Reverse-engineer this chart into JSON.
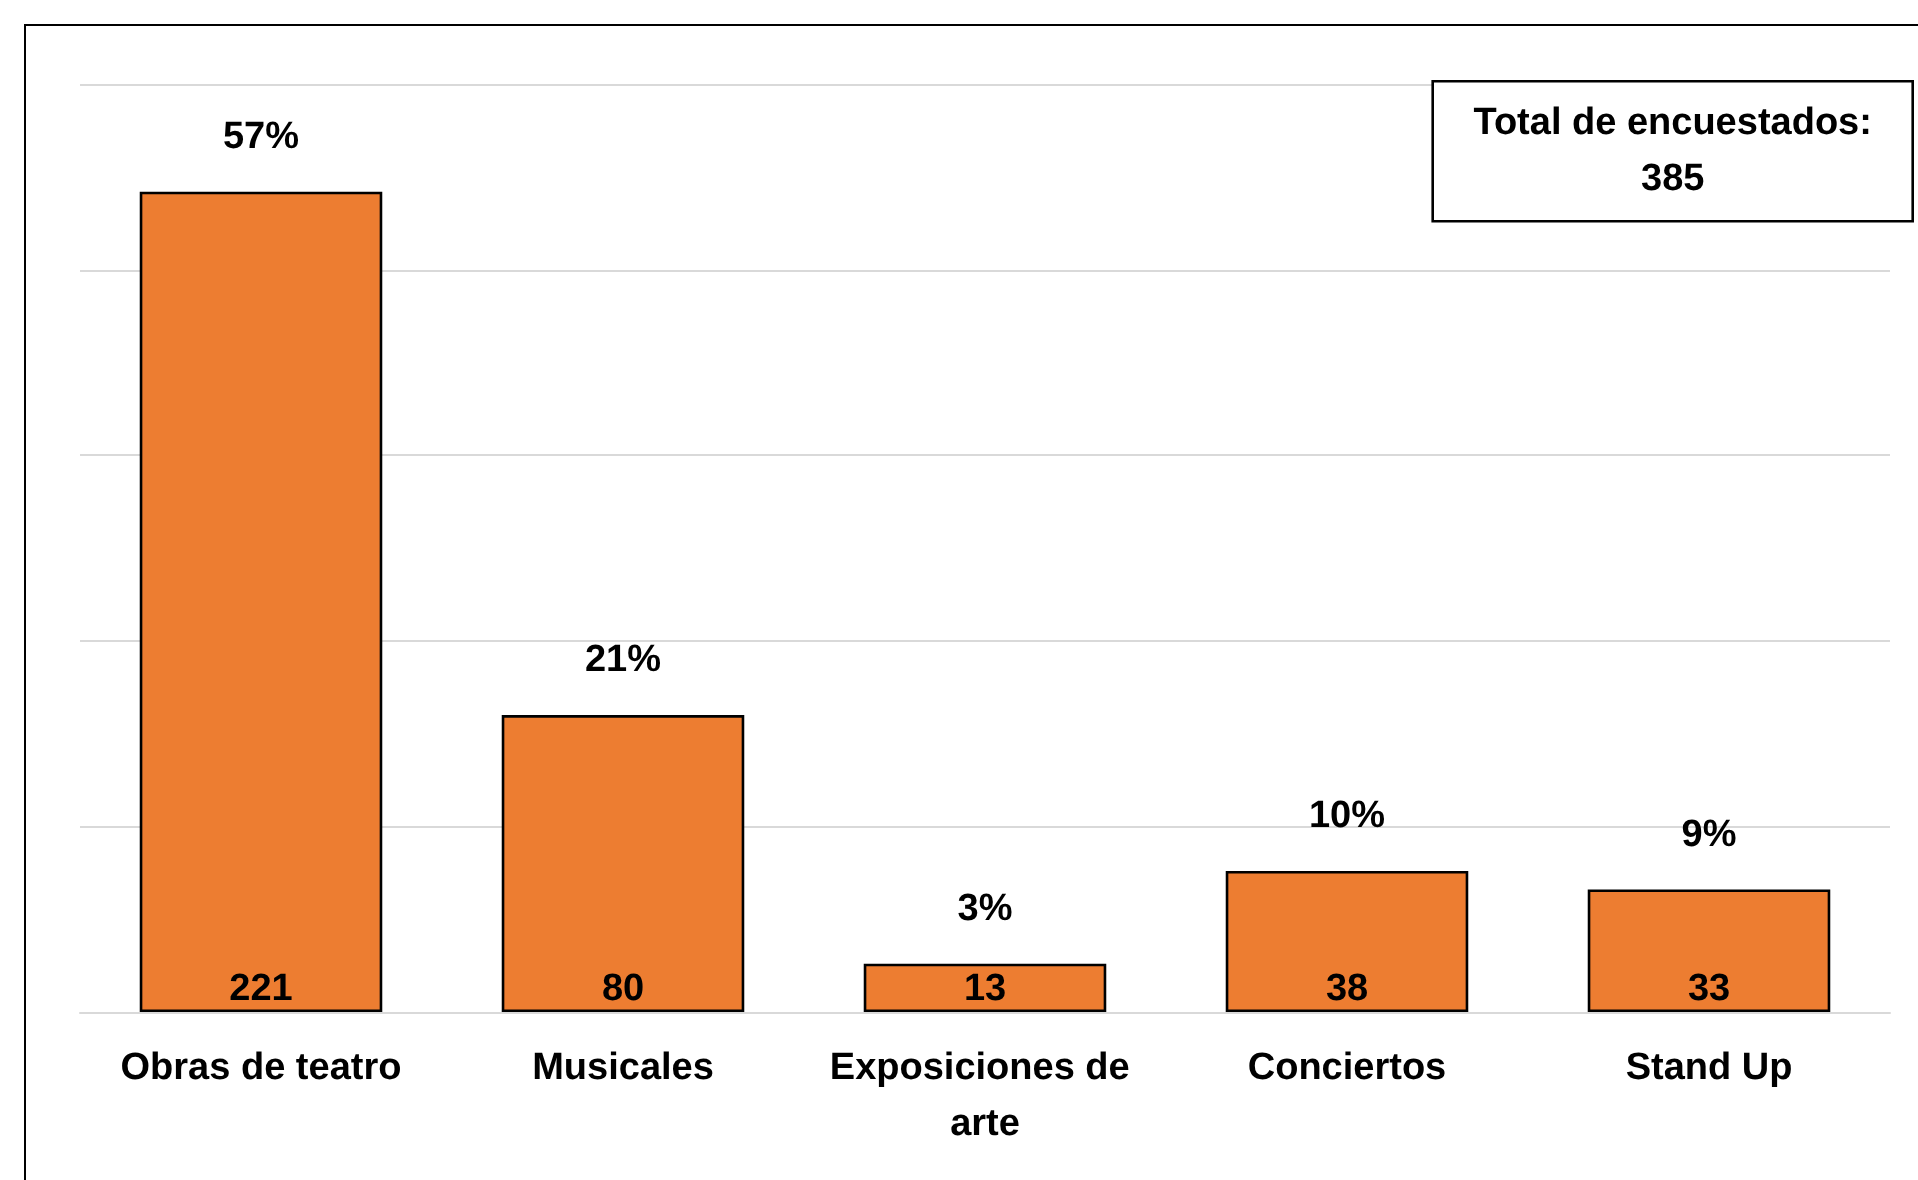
{
  "chart_data": {
    "type": "bar",
    "categories": [
      "Obras de teatro",
      "Musicales",
      "Exposiciones de arte",
      "Conciertos",
      "Stand Up"
    ],
    "values": [
      221,
      80,
      13,
      38,
      33
    ],
    "color": "#ed7d31",
    "data_labels": true,
    "ylim": [
      0,
      250
    ],
    "yticks": [
      {
        "value": 0,
        "label": null
      },
      {
        "value": 50,
        "label": null
      },
      {
        "value": 100,
        "label": null
      },
      {
        "value": 150,
        "label": null
      },
      {
        "value": 200,
        "label": null
      },
      {
        "value": 250,
        "label": null
      }
    ],
    "grid": "y",
    "tick_labels": "x",
    "annotations": [
      {
        "text": "57%",
        "x": "Obras de teatro",
        "y": 221
      },
      {
        "text": "21%",
        "x": "Musicales",
        "y": 80
      },
      {
        "text": "3%",
        "x": "Exposiciones de arte",
        "y": 13
      },
      {
        "text": "10%",
        "x": "Conciertos",
        "y": 38
      },
      {
        "text": "9%",
        "x": "Stand Up",
        "y": 33
      },
      "Total de encuestados:\n385"
    ]
  }
}
